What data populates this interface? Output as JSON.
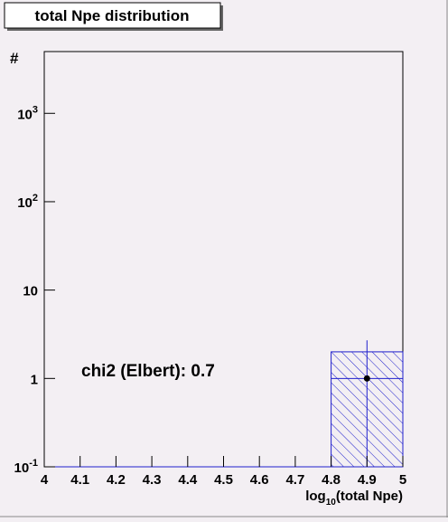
{
  "chart_data": {
    "type": "histogram",
    "title": "total Npe distribution",
    "y_label": "#",
    "x_label": {
      "base": "log",
      "sub": "10",
      "rest": "(total Npe)"
    },
    "annotation": "chi2 (Elbert): 0.7",
    "log_y": true,
    "xlim": [
      4,
      5
    ],
    "xticks": [
      4,
      4.1,
      4.2,
      4.3,
      4.4,
      4.5,
      4.6,
      4.7,
      4.8,
      4.9,
      5
    ],
    "ylim": [
      0.1,
      5000
    ],
    "yticks": [
      {
        "value": 0.1,
        "label": "10",
        "exponent": "-1"
      },
      1,
      10,
      {
        "value": 100,
        "label": "10",
        "exponent": "2"
      },
      {
        "value": 1000,
        "label": "10",
        "exponent": "3"
      }
    ],
    "bins": [
      4.0,
      4.2,
      4.4,
      4.6,
      4.8,
      5.0
    ],
    "counts": [
      0,
      0,
      0,
      0,
      2
    ],
    "color": "#1f1fcc",
    "points": {
      "x": [
        4.9
      ],
      "y": [
        1
      ],
      "yerr_low": [
        1
      ],
      "yerr_high": [
        1.7
      ],
      "xerr": [
        0.1
      ],
      "color": "#000000"
    }
  }
}
